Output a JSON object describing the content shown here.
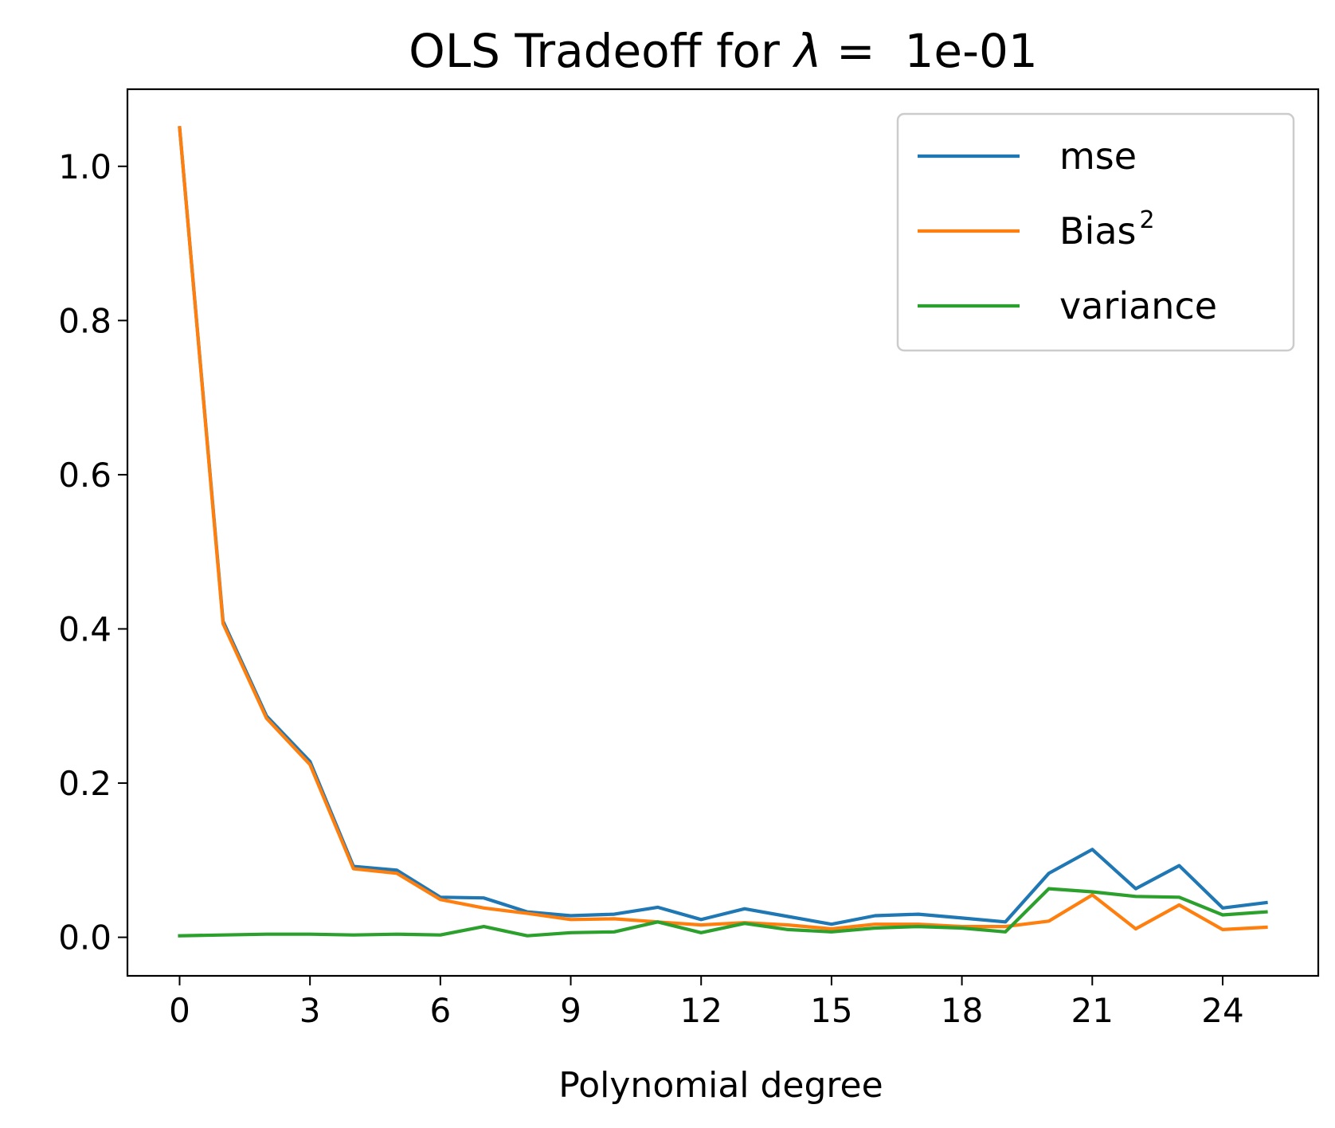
{
  "chart_data": {
    "type": "line",
    "title": "OLS Tradeoff for λ =  1e-01",
    "title_prefix": "OLS Tradeoff for ",
    "title_symbol": "λ",
    "title_suffix": " =  1e-01",
    "xlabel": "Polynomial degree",
    "ylabel": "",
    "xlim": [
      -1.2,
      26.2
    ],
    "ylim": [
      -0.05,
      1.1
    ],
    "x_ticks": [
      0,
      3,
      6,
      9,
      12,
      15,
      18,
      21,
      24
    ],
    "x_tick_labels": [
      "0",
      "3",
      "6",
      "9",
      "12",
      "15",
      "18",
      "21",
      "24"
    ],
    "y_ticks": [
      0.0,
      0.2,
      0.4,
      0.6,
      0.8,
      1.0
    ],
    "y_tick_labels": [
      "0.0",
      "0.2",
      "0.4",
      "0.6",
      "0.8",
      "1.0"
    ],
    "grid": false,
    "legend_position": "top-right",
    "x": [
      0,
      1,
      2,
      3,
      4,
      5,
      6,
      7,
      8,
      9,
      10,
      11,
      12,
      13,
      14,
      15,
      16,
      17,
      18,
      19,
      20,
      21,
      22,
      23,
      24,
      25
    ],
    "series": [
      {
        "name": "mse",
        "name_main": "mse",
        "name_sup": "",
        "color": "#1f77b4",
        "values": [
          1.05,
          0.41,
          0.287,
          0.228,
          0.092,
          0.087,
          0.052,
          0.051,
          0.033,
          0.028,
          0.03,
          0.039,
          0.023,
          0.037,
          0.027,
          0.017,
          0.028,
          0.03,
          0.025,
          0.02,
          0.083,
          0.114,
          0.063,
          0.093,
          0.038,
          0.045
        ]
      },
      {
        "name": "Bias2",
        "name_main": "Bias",
        "name_sup": "2",
        "color": "#ff7f0e",
        "values": [
          1.05,
          0.407,
          0.284,
          0.224,
          0.089,
          0.083,
          0.049,
          0.038,
          0.031,
          0.023,
          0.024,
          0.02,
          0.016,
          0.019,
          0.016,
          0.011,
          0.017,
          0.017,
          0.014,
          0.014,
          0.021,
          0.055,
          0.011,
          0.042,
          0.01,
          0.013
        ]
      },
      {
        "name": "variance",
        "name_main": "variance",
        "name_sup": "",
        "color": "#2ca02c",
        "values": [
          0.002,
          0.003,
          0.004,
          0.004,
          0.003,
          0.004,
          0.003,
          0.014,
          0.002,
          0.006,
          0.007,
          0.02,
          0.006,
          0.018,
          0.01,
          0.007,
          0.012,
          0.014,
          0.012,
          0.007,
          0.063,
          0.059,
          0.053,
          0.052,
          0.029,
          0.033
        ]
      }
    ]
  }
}
